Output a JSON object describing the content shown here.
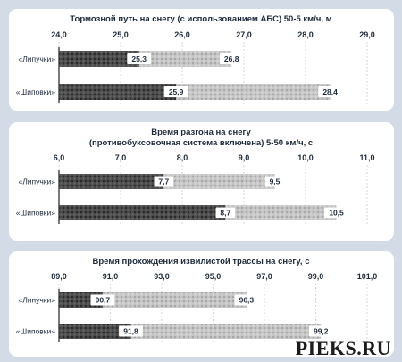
{
  "colors": {
    "page_bg": "#d3dbe7",
    "panel_bg": "#ffffff",
    "bar_dark": "#4a4a4a",
    "bar_light": "#c4c4c4",
    "text": "#1e2a3a"
  },
  "watermark": "PIEKS.RU",
  "chart_data": [
    {
      "type": "bar",
      "orientation": "horizontal",
      "title_lines": [
        "Тормозной путь на снегу (с использованием АБС) 50-5 км/ч, м"
      ],
      "categories": [
        "«Липучки»",
        "«Шиповки»"
      ],
      "ticks": [
        "24,0",
        "25,0",
        "26,0",
        "27,0",
        "28,0",
        "29,0"
      ],
      "xlim": [
        24,
        29
      ],
      "series": [
        {
          "values": [
            25.3,
            25.9
          ],
          "labels": [
            "25,3",
            "25,9"
          ]
        },
        {
          "values": [
            26.8,
            28.4
          ],
          "labels": [
            "26,8",
            "28,4"
          ]
        }
      ]
    },
    {
      "type": "bar",
      "orientation": "horizontal",
      "title_lines": [
        "Время разгона на снегу",
        "(противобуксовочная система включена) 5-50 км/ч, с"
      ],
      "categories": [
        "«Липучки»",
        "«Шиповки»"
      ],
      "ticks": [
        "6,0",
        "7,0",
        "8,0",
        "9,0",
        "10,0",
        "11,0"
      ],
      "xlim": [
        6,
        11
      ],
      "series": [
        {
          "values": [
            7.7,
            8.7
          ],
          "labels": [
            "7,7",
            "8,7"
          ]
        },
        {
          "values": [
            9.5,
            10.5
          ],
          "labels": [
            "9,5",
            "10,5"
          ]
        }
      ]
    },
    {
      "type": "bar",
      "orientation": "horizontal",
      "title_lines": [
        "Время прохождения извилистой трассы на снегу, с"
      ],
      "categories": [
        "«Липучки»",
        "«Шиповки»"
      ],
      "ticks": [
        "89,0",
        "91,0",
        "93,0",
        "95,0",
        "97,0",
        "99,0",
        "101,0"
      ],
      "xlim": [
        89,
        101
      ],
      "series": [
        {
          "values": [
            90.7,
            91.8
          ],
          "labels": [
            "90,7",
            "91,8"
          ]
        },
        {
          "values": [
            96.3,
            99.2
          ],
          "labels": [
            "96,3",
            "99,2"
          ]
        }
      ]
    }
  ]
}
